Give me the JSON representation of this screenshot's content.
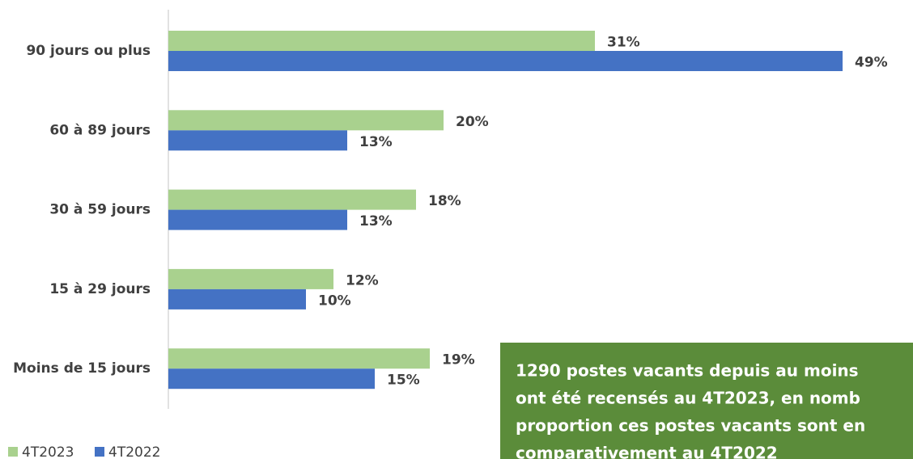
{
  "chart_data": {
    "type": "barh",
    "categories": [
      "90 jours ou plus",
      "60 à 89 jours",
      "30 à 59 jours",
      "15 à 29 jours",
      "Moins de 15 jours"
    ],
    "series": [
      {
        "name": "4T2023",
        "color": "#a9d18e",
        "values": [
          31,
          20,
          18,
          12,
          19
        ],
        "value_labels": [
          "31%",
          "20%",
          "18%",
          "12%",
          "19%"
        ]
      },
      {
        "name": "4T2022",
        "color": "#4472c4",
        "values": [
          49,
          13,
          13,
          10,
          15
        ],
        "value_labels": [
          "49%",
          "13%",
          "13%",
          "10%",
          "15%"
        ]
      }
    ],
    "legend": "bottom-left",
    "annotation": {
      "color": "#5b8c3a",
      "lines": [
        "1290 postes vacants depuis au moins",
        "ont été recensés au 4T2023, en nomb",
        "proportion ces postes vacants sont en",
        "comparativement au 4T2022"
      ]
    }
  }
}
